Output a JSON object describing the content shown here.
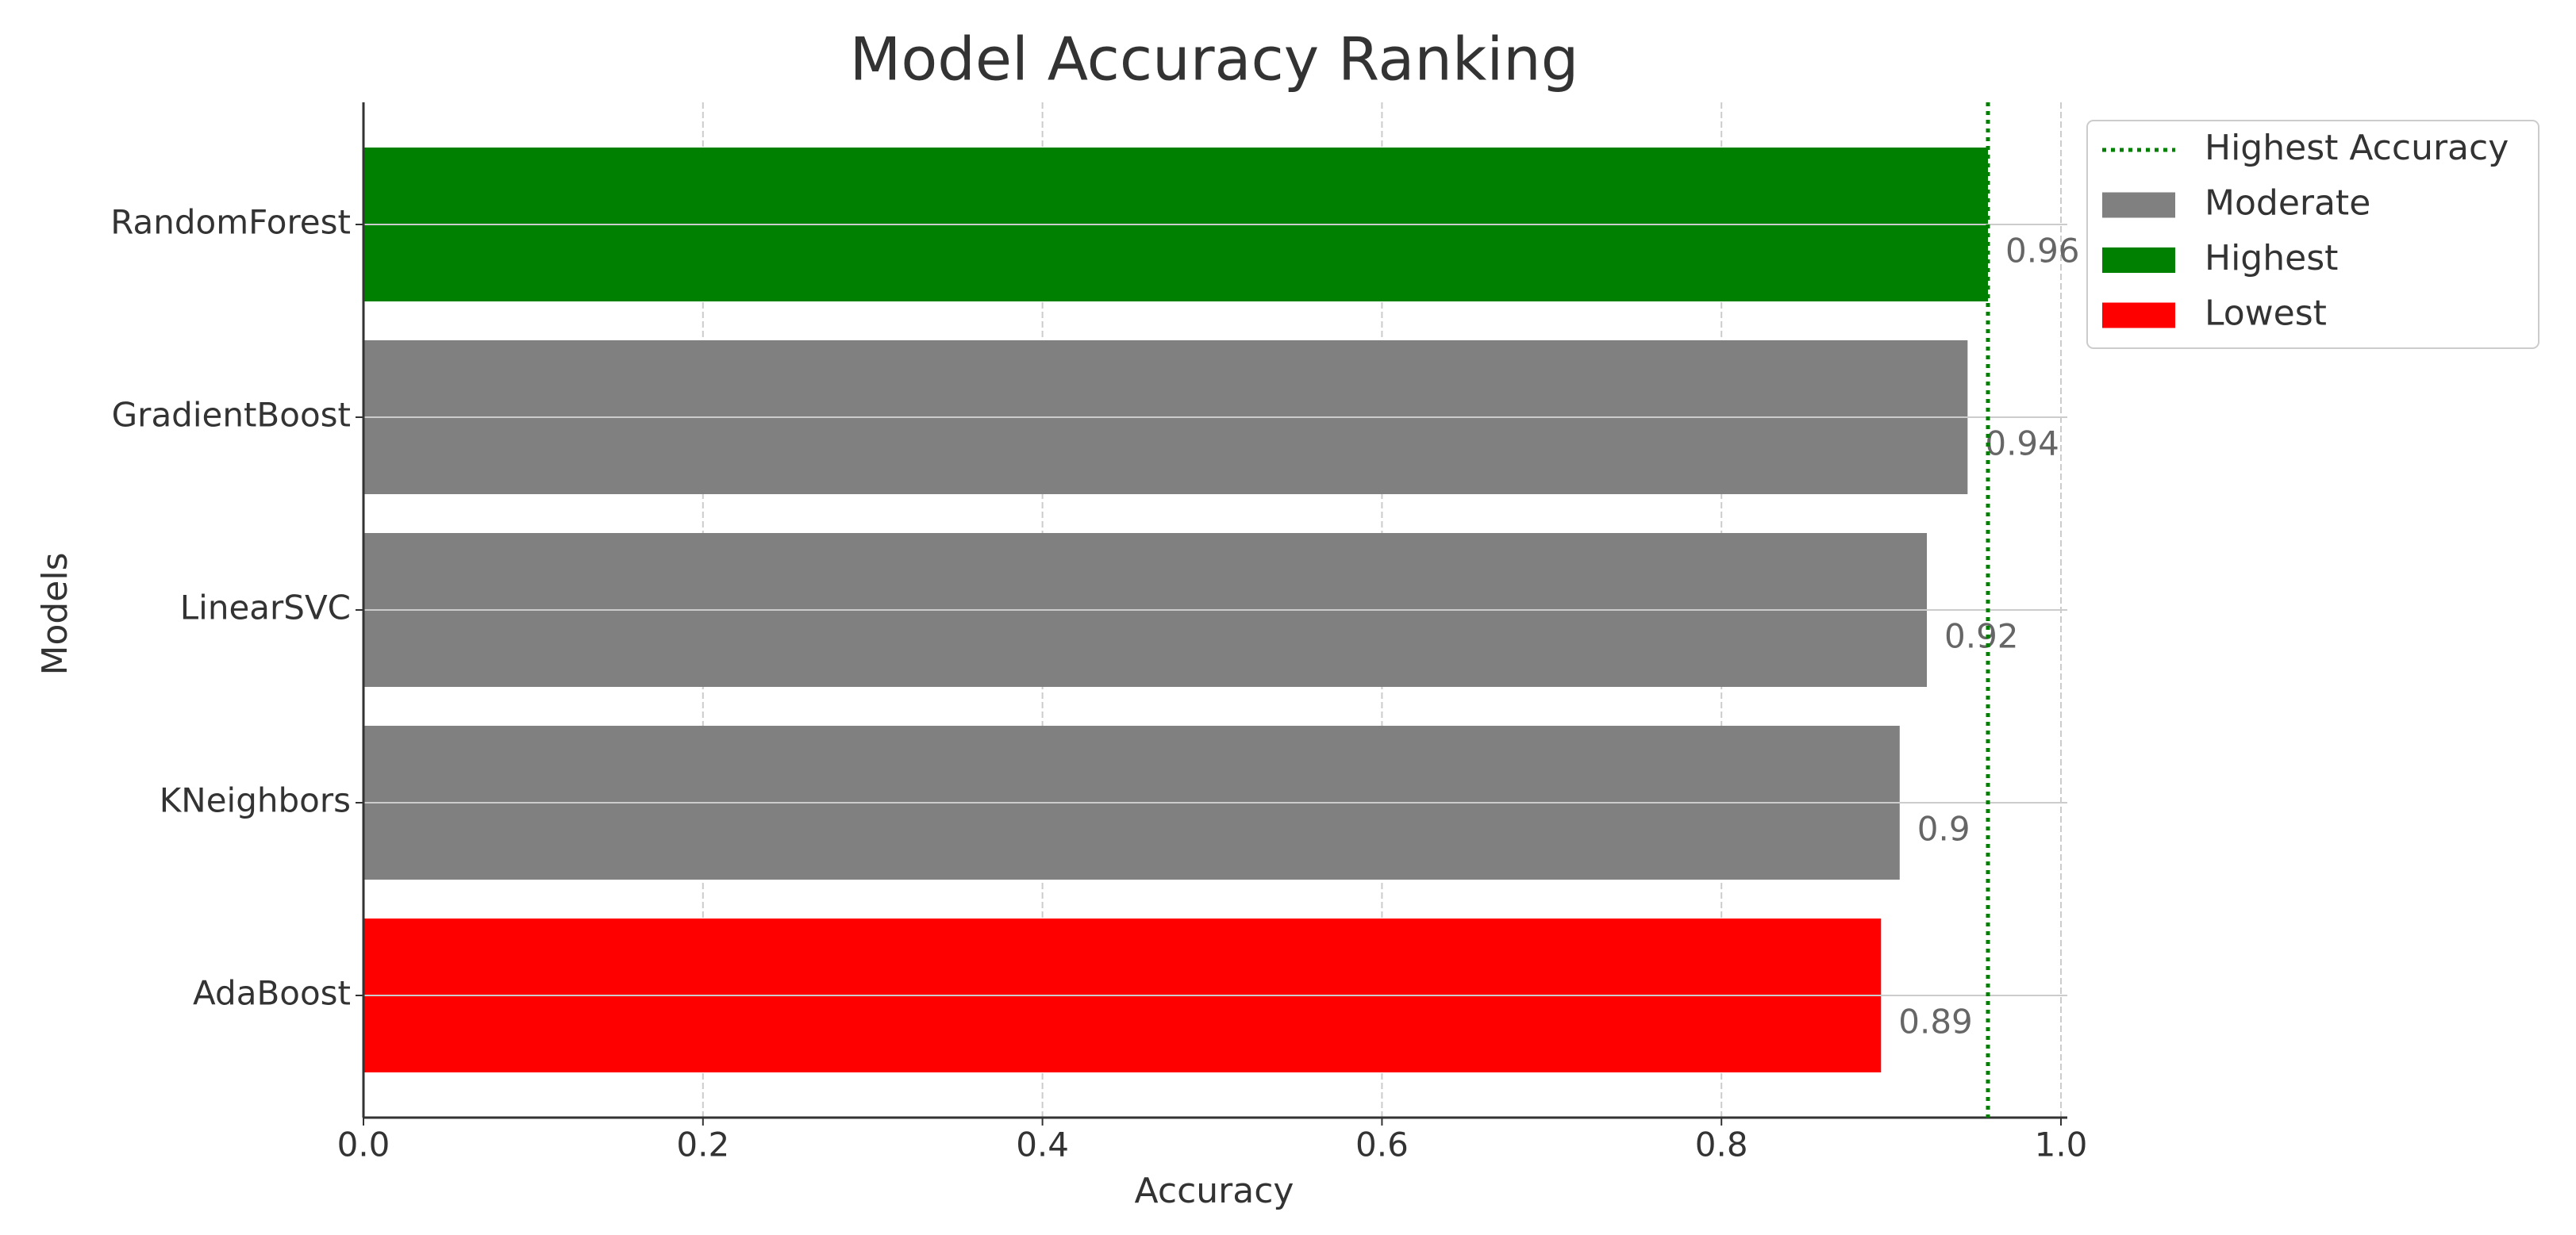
{
  "chart_data": {
    "type": "barh",
    "title": "Model Accuracy Ranking",
    "x_label": "Accuracy",
    "y_label": "Models",
    "categories": [
      "RandomForest",
      "GradientBoost",
      "LinearSVC",
      "KNeighbors",
      "AdaBoost"
    ],
    "values": [
      0.957,
      0.945,
      0.921,
      0.905,
      0.894
    ],
    "value_labels": [
      "0.96",
      "0.94",
      "0.92",
      "0.9",
      "0.89"
    ],
    "colors": [
      "green",
      "gray",
      "gray",
      "gray",
      "red"
    ],
    "xlim": [
      0,
      1.0
    ],
    "xticks": [
      {
        "value": 0,
        "label": "0.0"
      },
      0.2,
      0.4,
      0.6,
      0.8,
      {
        "value": 1,
        "label": "1.0"
      }
    ],
    "grid": true,
    "reference_line": {
      "value": 0.957,
      "name": "Highest Accuracy",
      "color": "green"
    },
    "legend_position": "upper-right-outside",
    "legend": [
      {
        "name": "Moderate",
        "color": "gray"
      },
      {
        "name": "Highest",
        "color": "green"
      },
      {
        "name": "Lowest",
        "color": "red"
      }
    ]
  }
}
